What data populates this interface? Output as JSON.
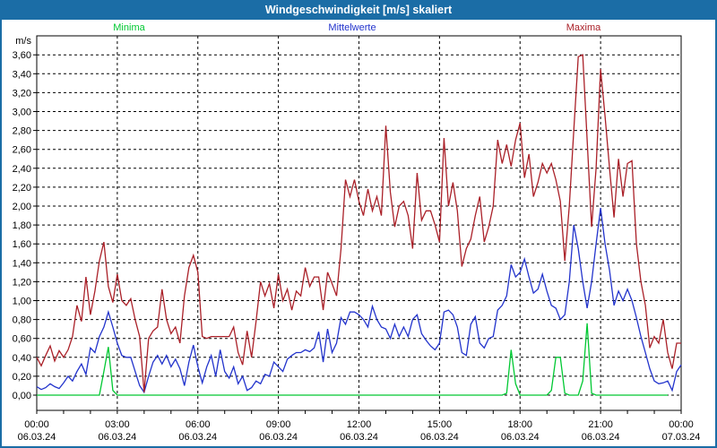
{
  "window": {
    "title": "Windgeschwindigkeit [m/s] skaliert"
  },
  "colors": {
    "titlebar": "#1B6DA6",
    "frame": "#1B6DA6",
    "grid": "#000000",
    "background": "#FFFFFF",
    "minima": "#00C832",
    "mittelwerte": "#2233CC",
    "maxima": "#AA2028"
  },
  "chart_data": {
    "type": "line",
    "title": "Windgeschwindigkeit [m/s] skaliert",
    "ylabel": "m/s",
    "ylim": [
      0,
      3.6
    ],
    "y_tick_step": 0.2,
    "y_ticks": [
      "0,00",
      "0,20",
      "0,40",
      "0,60",
      "0,80",
      "1,00",
      "1,20",
      "1,40",
      "1,60",
      "1,80",
      "2,00",
      "2,20",
      "2,40",
      "2,60",
      "2,80",
      "3,00",
      "3,20",
      "3,40",
      "3,60"
    ],
    "x_total_minutes": 1440,
    "x_minor_step_minutes": 60,
    "sample_step_minutes": 10,
    "grid": "dashed",
    "legend_position": "top",
    "x_ticks_major": [
      {
        "time": "00:00",
        "date": "06.03.24"
      },
      {
        "time": "03:00",
        "date": "06.03.24"
      },
      {
        "time": "06:00",
        "date": "06.03.24"
      },
      {
        "time": "09:00",
        "date": "06.03.24"
      },
      {
        "time": "12:00",
        "date": "06.03.24"
      },
      {
        "time": "15:00",
        "date": "06.03.24"
      },
      {
        "time": "18:00",
        "date": "06.03.24"
      },
      {
        "time": "21:00",
        "date": "06.03.24"
      },
      {
        "time": "00:00",
        "date": "07.03.24"
      }
    ],
    "series": [
      {
        "name": "Minima",
        "color": "#00C832",
        "values": [
          0,
          0,
          0,
          0,
          0,
          0,
          0,
          0,
          0,
          0,
          0,
          0,
          0,
          0,
          0,
          0.25,
          0.51,
          0.05,
          0,
          0,
          0,
          0,
          0,
          0,
          0,
          0,
          0,
          0,
          0,
          0,
          0,
          0,
          0,
          0,
          0,
          0,
          0,
          0,
          0,
          0,
          0,
          0,
          0,
          0,
          0,
          0,
          0,
          0,
          0,
          0,
          0,
          0,
          0,
          0,
          0,
          0,
          0,
          0,
          0,
          0,
          0,
          0,
          0,
          0,
          0,
          0,
          0,
          0,
          0,
          0,
          0,
          0,
          0,
          0,
          0,
          0,
          0,
          0,
          0,
          0,
          0,
          0,
          0,
          0,
          0,
          0,
          0,
          0,
          0,
          0,
          0,
          0,
          0,
          0,
          0,
          0,
          0,
          0,
          0,
          0,
          0,
          0,
          0,
          0,
          0,
          0.02,
          0.48,
          0.12,
          0,
          0,
          0,
          0,
          0,
          0,
          0,
          0.05,
          0.4,
          0.4,
          0.02,
          0,
          0,
          0,
          0.15,
          0.76,
          0.02,
          0,
          0,
          0,
          0,
          0,
          0,
          0,
          0,
          0,
          0,
          0,
          0,
          0,
          0,
          0,
          0,
          0
        ]
      },
      {
        "name": "Mittelwerte",
        "color": "#2233CC",
        "values": [
          0.09,
          0.06,
          0.08,
          0.12,
          0.09,
          0.07,
          0.13,
          0.2,
          0.15,
          0.25,
          0.33,
          0.22,
          0.5,
          0.45,
          0.62,
          0.72,
          0.88,
          0.72,
          0.55,
          0.42,
          0.4,
          0.4,
          0.25,
          0.1,
          0.03,
          0.2,
          0.35,
          0.42,
          0.33,
          0.42,
          0.3,
          0.38,
          0.28,
          0.1,
          0.35,
          0.53,
          0.3,
          0.13,
          0.3,
          0.42,
          0.2,
          0.48,
          0.25,
          0.18,
          0.3,
          0.12,
          0.2,
          0.05,
          0.08,
          0.15,
          0.12,
          0.22,
          0.2,
          0.35,
          0.3,
          0.25,
          0.38,
          0.42,
          0.45,
          0.45,
          0.48,
          0.46,
          0.5,
          0.67,
          0.35,
          0.7,
          0.45,
          0.55,
          0.82,
          0.75,
          0.88,
          0.88,
          0.85,
          0.8,
          0.72,
          0.94,
          0.8,
          0.72,
          0.7,
          0.6,
          0.75,
          0.62,
          0.72,
          0.62,
          0.8,
          0.85,
          0.65,
          0.58,
          0.52,
          0.48,
          0.55,
          0.88,
          0.9,
          0.85,
          0.72,
          0.45,
          0.42,
          0.75,
          0.83,
          0.55,
          0.5,
          0.6,
          0.62,
          0.9,
          0.95,
          1.05,
          1.38,
          1.25,
          1.3,
          1.44,
          1.25,
          1.08,
          1.12,
          1.28,
          1.1,
          0.95,
          0.92,
          0.8,
          0.85,
          1.2,
          1.8,
          1.55,
          1.2,
          0.92,
          1.2,
          1.6,
          1.98,
          1.6,
          1.32,
          0.95,
          1.1,
          1.0,
          1.12,
          1.0,
          0.82,
          0.62,
          0.45,
          0.28,
          0.15,
          0.12,
          0.13,
          0.15,
          0.05,
          0.25,
          0.32
        ]
      },
      {
        "name": "Maxima",
        "color": "#AA2028",
        "values": [
          0.4,
          0.31,
          0.42,
          0.52,
          0.36,
          0.47,
          0.4,
          0.48,
          0.62,
          0.95,
          0.78,
          1.25,
          0.85,
          1.1,
          1.42,
          1.62,
          1.15,
          0.98,
          1.28,
          1.0,
          0.95,
          1.02,
          0.8,
          0.62,
          0.03,
          0.6,
          0.68,
          0.72,
          1.12,
          0.8,
          0.65,
          0.72,
          0.55,
          1.05,
          1.35,
          1.48,
          1.3,
          0.62,
          0.6,
          0.62,
          0.62,
          0.62,
          0.62,
          0.62,
          0.72,
          0.45,
          0.32,
          0.68,
          0.4,
          0.78,
          1.2,
          1.05,
          1.18,
          0.92,
          1.28,
          1.0,
          1.12,
          0.9,
          1.1,
          1.05,
          1.35,
          1.15,
          1.25,
          1.25,
          0.9,
          1.3,
          1.18,
          1.05,
          1.55,
          2.28,
          2.1,
          2.28,
          2.05,
          1.9,
          2.18,
          1.95,
          2.1,
          1.9,
          2.85,
          2.15,
          1.78,
          2.0,
          2.05,
          1.9,
          1.55,
          2.35,
          1.85,
          1.95,
          1.95,
          1.8,
          1.62,
          2.72,
          2.0,
          2.25,
          1.95,
          1.36,
          1.55,
          1.65,
          1.9,
          2.1,
          1.62,
          1.78,
          2.0,
          2.7,
          2.45,
          2.65,
          2.42,
          2.7,
          2.88,
          2.3,
          2.55,
          2.1,
          2.25,
          2.45,
          2.35,
          2.45,
          2.28,
          2.05,
          1.42,
          2.0,
          2.8,
          3.58,
          3.6,
          2.7,
          1.78,
          2.4,
          3.45,
          2.95,
          2.4,
          1.88,
          2.5,
          2.1,
          2.45,
          2.48,
          1.6,
          1.2,
          0.95,
          0.5,
          0.62,
          0.55,
          0.8,
          0.45,
          0.28,
          0.55,
          0.55
        ]
      }
    ]
  }
}
